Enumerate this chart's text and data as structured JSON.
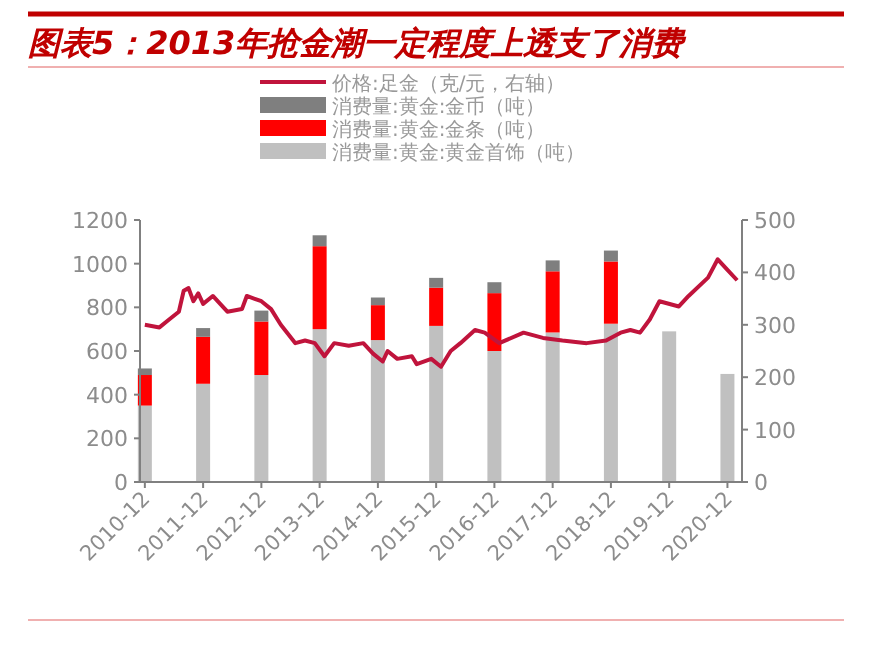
{
  "chart_data": {
    "type": "bar",
    "title": "图表5：2013年抢金潮一定程度上透支了消费",
    "stacked": true,
    "legend": "top",
    "grid": false,
    "x": [
      "2010-12",
      "2011-12",
      "2012-12",
      "2013-12",
      "2014-12",
      "2015-12",
      "2016-12",
      "2017-12",
      "2018-12",
      "2019-12",
      "2020-12"
    ],
    "xlim": [
      "2010-11",
      "2021-03"
    ],
    "xticks": [
      "2010-12",
      "2011-12",
      "2012-12",
      "2013-12",
      "2014-12",
      "2015-12",
      "2016-12",
      "2017-12",
      "2018-12",
      "2019-12",
      "2020-12"
    ],
    "ylim": [
      0,
      1200
    ],
    "yticks": [
      0,
      200,
      400,
      600,
      800,
      1000,
      1200
    ],
    "y2lim": [
      0,
      500
    ],
    "y2ticks": [
      0,
      100,
      200,
      300,
      400,
      500
    ],
    "series": [
      {
        "name": "消费量:黄金:黄金首饰（吨）",
        "color": "#c0c0c0",
        "values": [
          350,
          450,
          490,
          700,
          650,
          715,
          600,
          685,
          725,
          690,
          495
        ]
      },
      {
        "name": "消费量:黄金:金条（吨）",
        "color": "#ff0000",
        "values": [
          140,
          215,
          245,
          380,
          160,
          175,
          265,
          280,
          285,
          null,
          null
        ]
      },
      {
        "name": "消费量:黄金:金币（吨）",
        "color": "#7f7f7f",
        "values": [
          30,
          40,
          50,
          50,
          35,
          45,
          50,
          50,
          50,
          null,
          null
        ]
      },
      {
        "name": "价格:足金（克/元，右轴）",
        "type": "line",
        "axis": "y2",
        "color": "#c0143c",
        "x": [
          "2010-12",
          "2011-03",
          "2011-05",
          "2011-07",
          "2011-08",
          "2011-09",
          "2011-10",
          "2011-11",
          "2011-12",
          "2012-02",
          "2012-05",
          "2012-08",
          "2012-09",
          "2012-12",
          "2013-02",
          "2013-04",
          "2013-07",
          "2013-09",
          "2013-11",
          "2014-01",
          "2014-03",
          "2014-06",
          "2014-09",
          "2014-11",
          "2015-01",
          "2015-02",
          "2015-04",
          "2015-07",
          "2015-08",
          "2015-11",
          "2016-01",
          "2016-03",
          "2016-05",
          "2016-08",
          "2016-10",
          "2017-01",
          "2017-06",
          "2017-10",
          "2018-02",
          "2018-07",
          "2018-11",
          "2019-02",
          "2019-04",
          "2019-06",
          "2019-08",
          "2019-10",
          "2020-02",
          "2020-04",
          "2020-08",
          "2020-10",
          "2020-12",
          "2021-02"
        ],
        "values": [
          300,
          295,
          310,
          325,
          365,
          370,
          345,
          360,
          340,
          355,
          325,
          330,
          355,
          345,
          330,
          300,
          265,
          270,
          265,
          240,
          265,
          260,
          265,
          245,
          230,
          250,
          235,
          240,
          225,
          235,
          220,
          250,
          265,
          290,
          285,
          265,
          285,
          275,
          270,
          265,
          270,
          285,
          290,
          285,
          310,
          345,
          335,
          355,
          390,
          425,
          405,
          385
        ]
      }
    ]
  }
}
